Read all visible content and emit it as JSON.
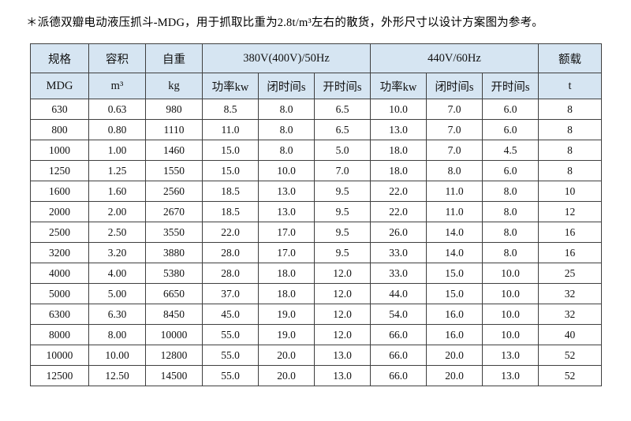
{
  "title": "＊派德双瓣电动液压抓斗-MDG，用于抓取比重为2.8t/m³左右的散货，外形尺寸以设计方案图为参考。",
  "colors": {
    "header_bg": "#d6e5f2",
    "grid": "#3f3f3f",
    "text": "#111111"
  },
  "table": {
    "header_row1": {
      "spec": "规格",
      "capacity": "容积",
      "weight": "自重",
      "hz50": "380V(400V)/50Hz",
      "hz60": "440V/60Hz",
      "rated_load": "额载"
    },
    "header_row2": {
      "spec_unit": "MDG",
      "capacity_unit": "m³",
      "weight_unit": "kg",
      "power_50": "功率kw",
      "close_time_50": "闭时间s",
      "open_time_50": "开时间s",
      "power_60": "功率kw",
      "close_time_60": "闭时间s",
      "open_time_60": "开时间s",
      "load_unit": "t"
    },
    "rows": [
      [
        "630",
        "0.63",
        "980",
        "8.5",
        "8.0",
        "6.5",
        "10.0",
        "7.0",
        "6.0",
        "8"
      ],
      [
        "800",
        "0.80",
        "1110",
        "11.0",
        "8.0",
        "6.5",
        "13.0",
        "7.0",
        "6.0",
        "8"
      ],
      [
        "1000",
        "1.00",
        "1460",
        "15.0",
        "8.0",
        "5.0",
        "18.0",
        "7.0",
        "4.5",
        "8"
      ],
      [
        "1250",
        "1.25",
        "1550",
        "15.0",
        "10.0",
        "7.0",
        "18.0",
        "8.0",
        "6.0",
        "8"
      ],
      [
        "1600",
        "1.60",
        "2560",
        "18.5",
        "13.0",
        "9.5",
        "22.0",
        "11.0",
        "8.0",
        "10"
      ],
      [
        "2000",
        "2.00",
        "2670",
        "18.5",
        "13.0",
        "9.5",
        "22.0",
        "11.0",
        "8.0",
        "12"
      ],
      [
        "2500",
        "2.50",
        "3550",
        "22.0",
        "17.0",
        "9.5",
        "26.0",
        "14.0",
        "8.0",
        "16"
      ],
      [
        "3200",
        "3.20",
        "3880",
        "28.0",
        "17.0",
        "9.5",
        "33.0",
        "14.0",
        "8.0",
        "16"
      ],
      [
        "4000",
        "4.00",
        "5380",
        "28.0",
        "18.0",
        "12.0",
        "33.0",
        "15.0",
        "10.0",
        "25"
      ],
      [
        "5000",
        "5.00",
        "6650",
        "37.0",
        "18.0",
        "12.0",
        "44.0",
        "15.0",
        "10.0",
        "32"
      ],
      [
        "6300",
        "6.30",
        "8450",
        "45.0",
        "19.0",
        "12.0",
        "54.0",
        "16.0",
        "10.0",
        "32"
      ],
      [
        "8000",
        "8.00",
        "10000",
        "55.0",
        "19.0",
        "12.0",
        "66.0",
        "16.0",
        "10.0",
        "40"
      ],
      [
        "10000",
        "10.00",
        "12800",
        "55.0",
        "20.0",
        "13.0",
        "66.0",
        "20.0",
        "13.0",
        "52"
      ],
      [
        "12500",
        "12.50",
        "14500",
        "55.0",
        "20.0",
        "13.0",
        "66.0",
        "20.0",
        "13.0",
        "52"
      ]
    ]
  }
}
